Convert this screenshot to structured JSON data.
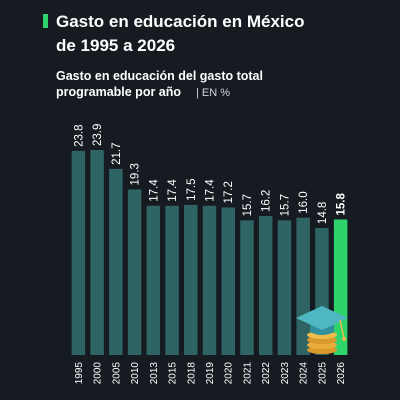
{
  "chart_data": {
    "type": "bar",
    "title": [
      "Gasto en educación en México",
      "de 1995 a 2026"
    ],
    "subtitle": [
      "Gasto en educación del gasto total",
      "programable por año"
    ],
    "unit": "| EN %",
    "categories": [
      "1995",
      "2000",
      "2005",
      "2010",
      "2013",
      "2015",
      "2018",
      "2019",
      "2020",
      "2021",
      "2022",
      "2023",
      "2024",
      "2025",
      "2026"
    ],
    "values": [
      23.8,
      23.9,
      21.7,
      19.3,
      17.4,
      17.4,
      17.5,
      17.4,
      17.2,
      15.7,
      16.2,
      15.7,
      16.0,
      14.8,
      15.8
    ],
    "value_labels": [
      "23.8",
      "23.9",
      "21.7",
      "19.3",
      "17.4",
      "17.4",
      "17.5",
      "17.4",
      "17.2",
      "15.7",
      "16.2",
      "15.7",
      "16.0",
      "14.8",
      "15.8"
    ],
    "colors": [
      "#2e6464",
      "#2e6464",
      "#2e6464",
      "#2e6464",
      "#2e6464",
      "#2e6464",
      "#2e6464",
      "#2e6464",
      "#2e6464",
      "#2e6464",
      "#2e6464",
      "#2e6464",
      "#2e6464",
      "#2e6464",
      "#2fd36b"
    ]
  }
}
